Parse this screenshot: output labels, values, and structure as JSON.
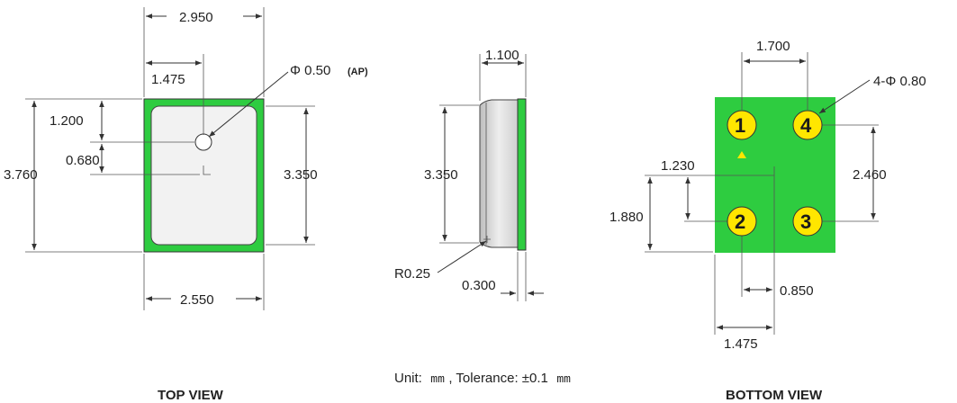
{
  "top_view": {
    "label": "TOP VIEW",
    "width_outer": "2.950",
    "hole_offset_x": "1.475",
    "hole_label": "Φ 0.50",
    "hole_tag": "(AP)",
    "hole_offset_y": "1.200",
    "center_offset": "0.680",
    "height_outer": "3.760",
    "height_inner": "3.350",
    "width_inner": "2.550"
  },
  "side_view": {
    "thickness": "1.100",
    "height": "3.350",
    "radius": "R0.25",
    "lid": "0.300"
  },
  "bottom_view": {
    "label": "BOTTOM VIEW",
    "pad_pitch_x": "1.700",
    "pad_label": "4-Φ 0.80",
    "pad_pitch_y": "2.460",
    "offset_y_a": "1.230",
    "offset_y_b": "1.880",
    "offset_x_a": "0.850",
    "offset_x_b": "1.475",
    "pins": [
      "1",
      "4",
      "2",
      "3"
    ]
  },
  "footer": {
    "unit_prefix": "Unit:",
    "unit_mm_1": "mm",
    "tolerance_label": ", Tolerance: ±0.1",
    "unit_mm_2": "mm"
  },
  "colors": {
    "pcb_green": "#2ecc40",
    "pad_yellow": "#ffe600",
    "body_fill": "#f2f2f2"
  }
}
